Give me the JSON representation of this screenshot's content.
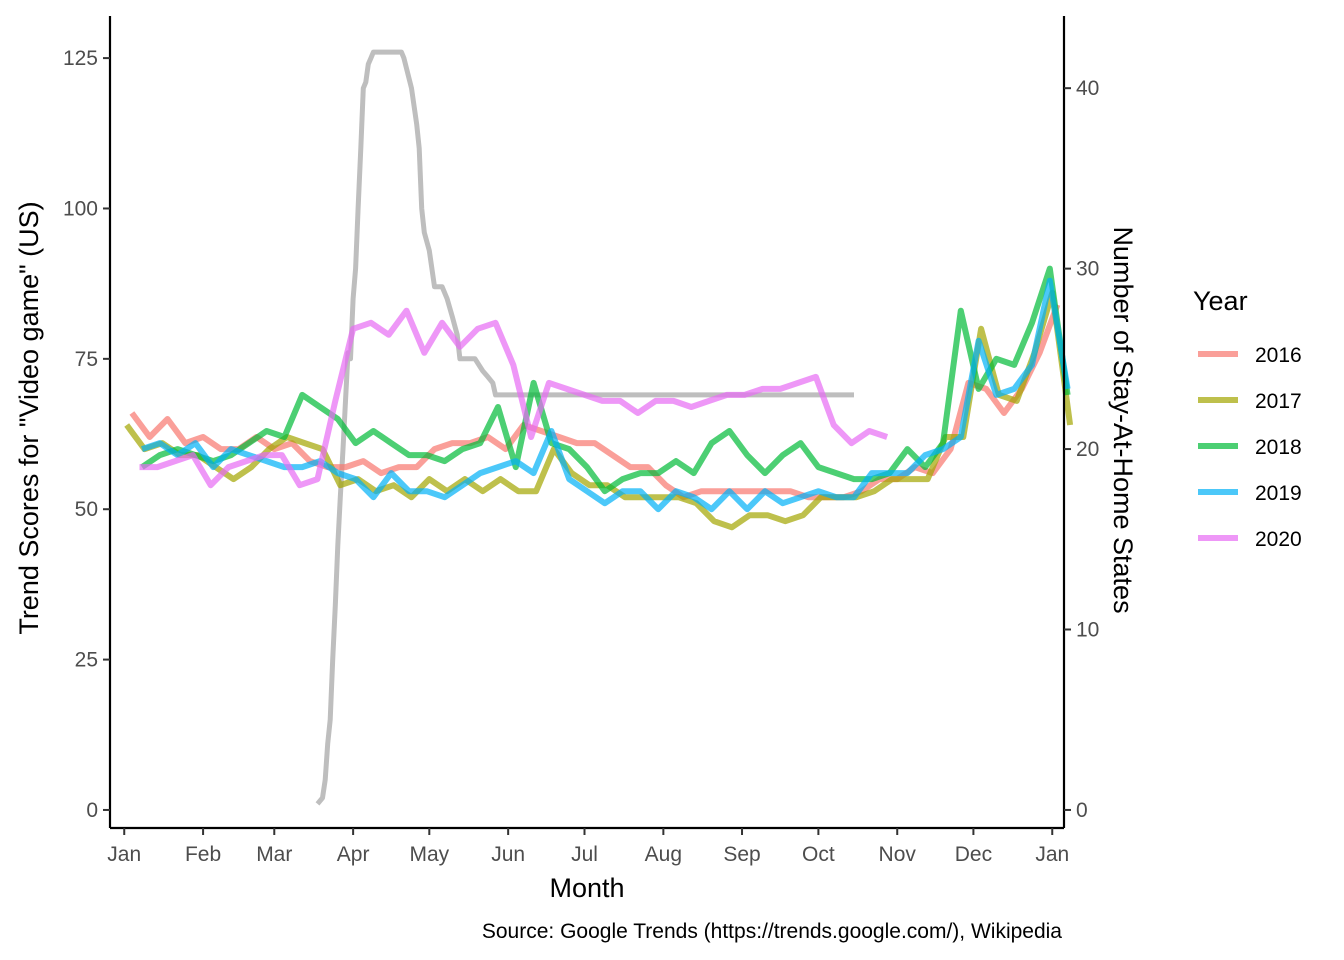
{
  "chart_data": {
    "type": "line",
    "title": "",
    "caption": "Source: Google Trends (https://trends.google.com/), Wikipedia",
    "xlabel": "Month",
    "ylabel": "Trend Scores for \"Video game\" (US)",
    "y2label": "Number of Stay-At-Home States",
    "x_unit": "weeks since start of year",
    "xlim": [
      -0.8,
      52.8
    ],
    "ylim": [
      -3,
      132
    ],
    "y2lim": [
      -1,
      44
    ],
    "x_ticks": [
      {
        "label": "Jan",
        "x": 0
      },
      {
        "label": "Feb",
        "x": 4.43
      },
      {
        "label": "Mar",
        "x": 8.43
      },
      {
        "label": "Apr",
        "x": 12.86
      },
      {
        "label": "May",
        "x": 17.14
      },
      {
        "label": "Jun",
        "x": 21.57
      },
      {
        "label": "Jul",
        "x": 25.86
      },
      {
        "label": "Aug",
        "x": 30.29
      },
      {
        "label": "Sep",
        "x": 34.71
      },
      {
        "label": "Oct",
        "x": 39
      },
      {
        "label": "Nov",
        "x": 43.43
      },
      {
        "label": "Dec",
        "x": 47.71
      },
      {
        "label": "Jan",
        "x": 52.14
      }
    ],
    "y_ticks": [
      0,
      25,
      50,
      75,
      100,
      125
    ],
    "y2_ticks": [
      0,
      10,
      20,
      30,
      40
    ],
    "grid": false,
    "legend": {
      "title": "Year",
      "position": "right"
    },
    "series": [
      {
        "name": "2016",
        "color": "#F8766D",
        "x_start": 0.43,
        "values": [
          66,
          62,
          65,
          61,
          62,
          60,
          60,
          62,
          60,
          61,
          58,
          57,
          57,
          58,
          56,
          57,
          57,
          60,
          61,
          61,
          62,
          60,
          64,
          63,
          62,
          61,
          61,
          59,
          57,
          57,
          54,
          52,
          53,
          53,
          53,
          53,
          53,
          53,
          52,
          52,
          52,
          53,
          55,
          55,
          57,
          56,
          60,
          71,
          70,
          66,
          70,
          76,
          84
        ]
      },
      {
        "name": "2017",
        "color": "#A3A500",
        "x_start": 0.14,
        "values": [
          64,
          60,
          61,
          59,
          59,
          57,
          55,
          57,
          60,
          62,
          61,
          60,
          54,
          55,
          53,
          54,
          52,
          55,
          53,
          55,
          53,
          55,
          53,
          53,
          60,
          56,
          54,
          54,
          52,
          52,
          52,
          52,
          51,
          48,
          47,
          49,
          49,
          48,
          49,
          52,
          52,
          52,
          53,
          55,
          55,
          55,
          62,
          62,
          80,
          69,
          68,
          76,
          86,
          64
        ]
      },
      {
        "name": "2018",
        "color": "#00BA38",
        "x_start": 1.0,
        "values": [
          57,
          59,
          60,
          59,
          58,
          59,
          61,
          63,
          62,
          69,
          67,
          65,
          61,
          63,
          61,
          59,
          59,
          58,
          60,
          61,
          67,
          57,
          71,
          61,
          60,
          57,
          53,
          55,
          56,
          56,
          58,
          56,
          61,
          63,
          59,
          56,
          59,
          61,
          57,
          56,
          55,
          55,
          56,
          60,
          57,
          61,
          83,
          70,
          75,
          74,
          81,
          90,
          69
        ]
      },
      {
        "name": "2019",
        "color": "#00B0F6",
        "x_start": 1.0,
        "values": [
          60,
          61,
          59,
          61,
          57,
          60,
          59,
          58,
          57,
          57,
          58,
          56,
          55,
          52,
          56,
          53,
          53,
          52,
          54,
          56,
          57,
          58,
          56,
          63,
          55,
          53,
          51,
          53,
          53,
          50,
          53,
          52,
          50,
          53,
          50,
          53,
          51,
          52,
          53,
          52,
          52,
          56,
          56,
          56,
          59,
          60,
          62,
          78,
          69,
          70,
          74,
          88,
          70
        ]
      },
      {
        "name": "2020",
        "color": "#E76BF3",
        "x_start": 0.86,
        "values": [
          57,
          57,
          58,
          59,
          54,
          57,
          58,
          59,
          59,
          54,
          55,
          68,
          80,
          81,
          79,
          83,
          76,
          81,
          77,
          80,
          81,
          74,
          62,
          71,
          70,
          69,
          68,
          68,
          66,
          68,
          68,
          67,
          68,
          69,
          69,
          70,
          70,
          71,
          72,
          64,
          61,
          63,
          62
        ]
      }
    ],
    "stay_at_home": {
      "name": "Number of Stay-At-Home States",
      "color": "#BEBEBE",
      "points": [
        [
          10.86,
          1
        ],
        [
          11.14,
          2
        ],
        [
          11.29,
          5
        ],
        [
          11.43,
          11
        ],
        [
          11.57,
          15
        ],
        [
          11.71,
          25
        ],
        [
          11.86,
          34
        ],
        [
          12.0,
          44
        ],
        [
          12.14,
          52
        ],
        [
          12.29,
          60
        ],
        [
          12.43,
          68
        ],
        [
          12.57,
          76
        ],
        [
          12.71,
          75
        ],
        [
          12.86,
          85
        ],
        [
          13.0,
          90
        ],
        [
          13.14,
          100
        ],
        [
          13.29,
          110
        ],
        [
          13.43,
          120
        ],
        [
          13.57,
          121
        ],
        [
          13.71,
          124
        ],
        [
          13.86,
          125
        ],
        [
          14.0,
          126
        ],
        [
          14.14,
          126
        ],
        [
          15.43,
          126
        ],
        [
          15.57,
          126
        ],
        [
          15.71,
          125
        ],
        [
          16.14,
          120
        ],
        [
          16.43,
          114
        ],
        [
          16.57,
          110
        ],
        [
          16.71,
          100
        ],
        [
          16.86,
          96
        ],
        [
          17.14,
          93
        ],
        [
          17.43,
          87
        ],
        [
          17.86,
          87
        ],
        [
          18.14,
          85
        ],
        [
          18.43,
          82
        ],
        [
          18.71,
          79
        ],
        [
          18.86,
          75
        ],
        [
          19.14,
          75
        ],
        [
          19.71,
          75
        ],
        [
          20.14,
          73
        ],
        [
          20.43,
          72
        ],
        [
          20.71,
          71
        ],
        [
          20.86,
          69
        ],
        [
          22.0,
          69
        ],
        [
          22.86,
          69
        ],
        [
          28.57,
          69
        ],
        [
          39.14,
          69
        ],
        [
          41.0,
          69
        ]
      ]
    }
  }
}
